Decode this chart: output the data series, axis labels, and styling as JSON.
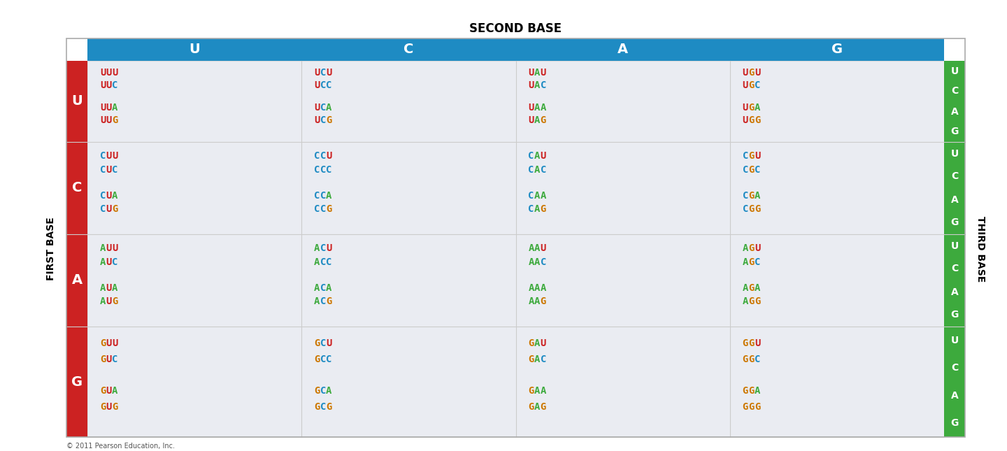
{
  "title": "SECOND BASE",
  "first_base_label": "FIRST BASE",
  "third_base_label": "THIRD BASE",
  "second_bases": [
    "U",
    "C",
    "A",
    "G"
  ],
  "first_bases": [
    "U",
    "C",
    "A",
    "G"
  ],
  "third_bases": [
    "U",
    "C",
    "A",
    "G"
  ],
  "header_bg": "#1e8bc3",
  "header_text": "#ffffff",
  "first_base_bg": "#cc2222",
  "first_base_text": "#ffffff",
  "third_base_bg": "#3daa3d",
  "third_base_text": "#ffffff",
  "cell_bg": "#eaecf2",
  "grid_line": "#cccccc",
  "codon_color_map": {
    "U": "#cc2222",
    "C": "#1e8bc3",
    "A": "#3daa3d",
    "G": "#cc7700"
  },
  "copyright": "© 2011 Pearson Education, Inc.",
  "title_fontsize": 12,
  "header_fontsize": 14,
  "codon_fontsize": 10,
  "label_fontsize": 10,
  "side_label_fontsize": 10,
  "all_codons": {
    "U": {
      "U": [
        "UUU",
        "UUC",
        "UUA",
        "UUG"
      ],
      "C": [
        "UCU",
        "UCC",
        "UCA",
        "UCG"
      ],
      "A": [
        "UAU",
        "UAC",
        "UAA",
        "UAG"
      ],
      "G": [
        "UGU",
        "UGC",
        "UGA",
        "UGG"
      ]
    },
    "C": {
      "U": [
        "CUU",
        "CUC",
        "CUA",
        "CUG"
      ],
      "C": [
        "CCU",
        "CCC",
        "CCA",
        "CCG"
      ],
      "A": [
        "CAU",
        "CAC",
        "CAA",
        "CAG"
      ],
      "G": [
        "CGU",
        "CGC",
        "CGA",
        "CGG"
      ]
    },
    "A": {
      "U": [
        "AUU",
        "AUC",
        "AUA",
        "AUG"
      ],
      "C": [
        "ACU",
        "ACC",
        "ACA",
        "ACG"
      ],
      "A": [
        "AAU",
        "AAC",
        "AAA",
        "AAG"
      ],
      "G": [
        "AGU",
        "AGC",
        "AGA",
        "AGG"
      ]
    },
    "G": {
      "U": [
        "GUU",
        "GUC",
        "GUA",
        "GUG"
      ],
      "C": [
        "GCU",
        "GCC",
        "GCA",
        "GCG"
      ],
      "A": [
        "GAU",
        "GAC",
        "GAA",
        "GAG"
      ],
      "G": [
        "GGU",
        "GGC",
        "GGA",
        "GGG"
      ]
    }
  }
}
